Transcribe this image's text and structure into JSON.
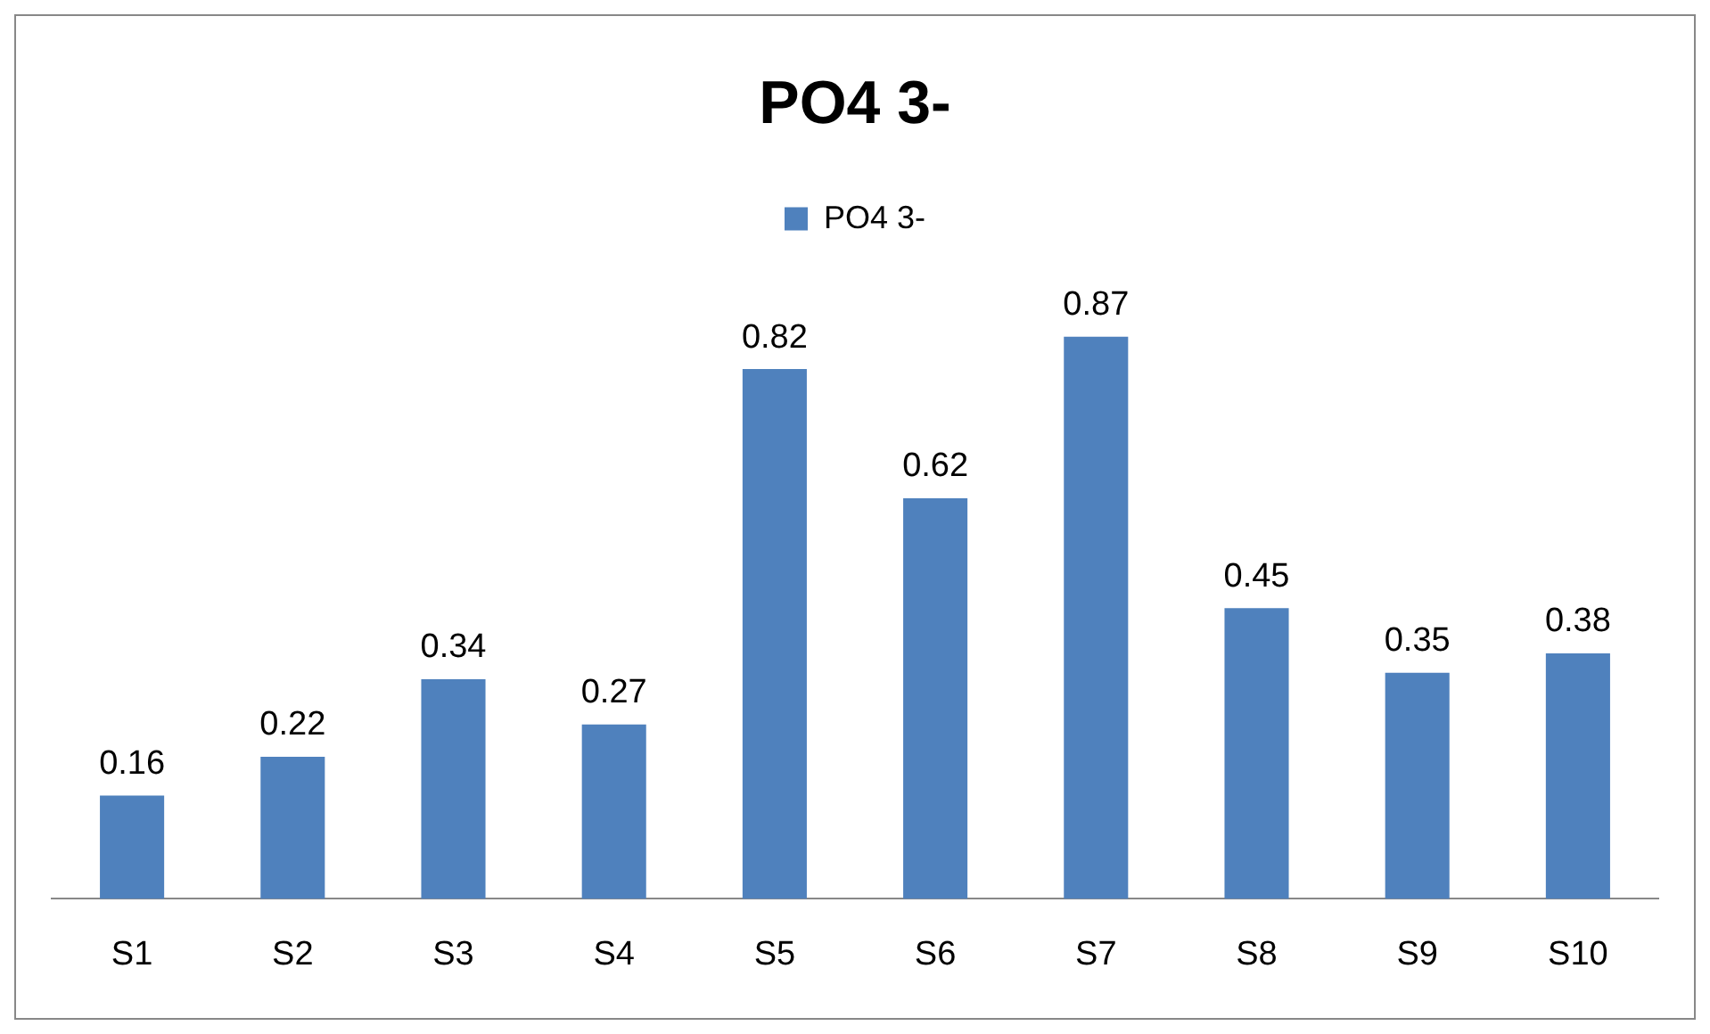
{
  "chart_data": {
    "type": "bar",
    "title": "PO4 3-",
    "categories": [
      "S1",
      "S2",
      "S3",
      "S4",
      "S5",
      "S6",
      "S7",
      "S8",
      "S9",
      "S10"
    ],
    "series": [
      {
        "name": "PO4 3-",
        "color": "#4f81bd",
        "values": [
          0.16,
          0.22,
          0.34,
          0.27,
          0.82,
          0.62,
          0.87,
          0.45,
          0.35,
          0.38
        ]
      }
    ],
    "data_labels": true,
    "legend": "top",
    "grid": false,
    "tick_labels": "x"
  }
}
